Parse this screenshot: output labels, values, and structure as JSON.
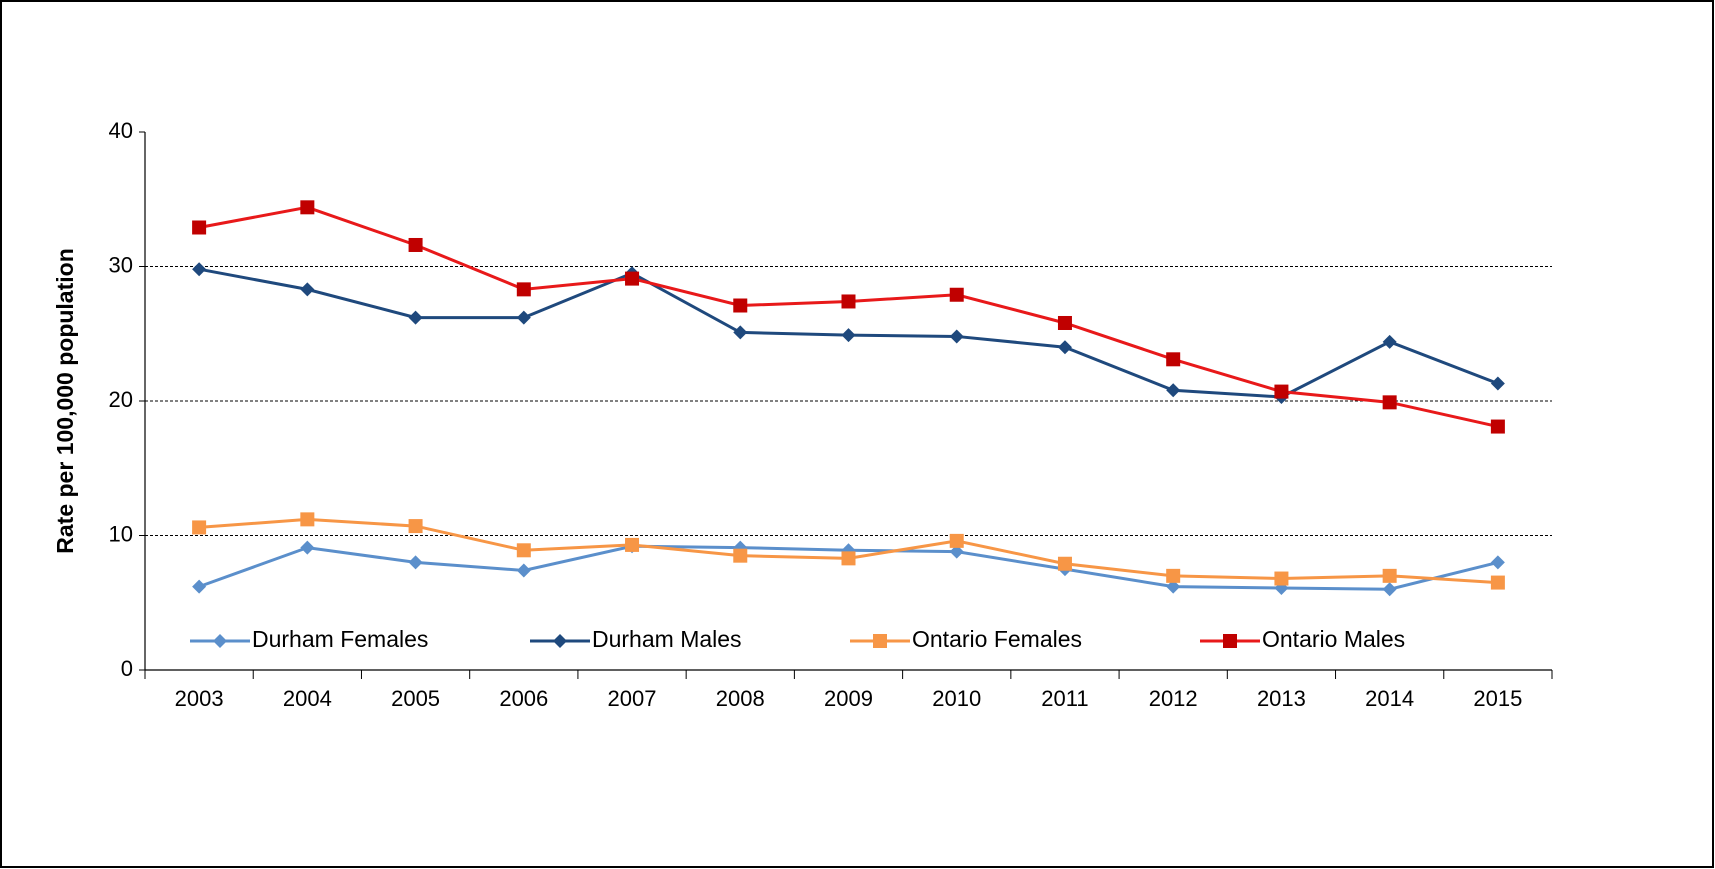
{
  "chart_data": {
    "type": "line",
    "y_label": "Rate per 100,000 population",
    "categories": [
      "2003",
      "2004",
      "2005",
      "2006",
      "2007",
      "2008",
      "2009",
      "2010",
      "2011",
      "2012",
      "2013",
      "2014",
      "2015"
    ],
    "series": [
      {
        "name": "Durham Females",
        "color": "#5b8fcb",
        "marker": "diamond",
        "values": [
          6.2,
          9.1,
          8.0,
          7.4,
          9.2,
          9.1,
          8.9,
          8.8,
          7.5,
          6.2,
          6.1,
          6.0,
          8.0
        ]
      },
      {
        "name": "Durham Males",
        "color": "#1f497d",
        "marker": "diamond",
        "values": [
          29.8,
          28.3,
          26.2,
          26.2,
          29.5,
          25.1,
          24.9,
          24.8,
          24.0,
          20.8,
          20.3,
          24.4,
          21.3
        ]
      },
      {
        "name": "Ontario Females",
        "color": "#f79646",
        "marker": "square",
        "values": [
          10.6,
          11.2,
          10.7,
          8.9,
          9.3,
          8.5,
          8.3,
          9.6,
          7.9,
          7.0,
          6.8,
          7.0,
          6.5
        ]
      },
      {
        "name": "Ontario Males",
        "color": "#e8191a",
        "marker_color": "#c00000",
        "marker": "square",
        "values": [
          32.9,
          34.4,
          31.6,
          28.3,
          29.1,
          27.1,
          27.4,
          27.9,
          25.8,
          23.1,
          20.7,
          19.9,
          18.1
        ]
      }
    ],
    "ylim": [
      0,
      40
    ],
    "yticks": [
      0,
      10,
      20,
      30,
      40
    ],
    "grid": true,
    "legend": "bottom"
  }
}
